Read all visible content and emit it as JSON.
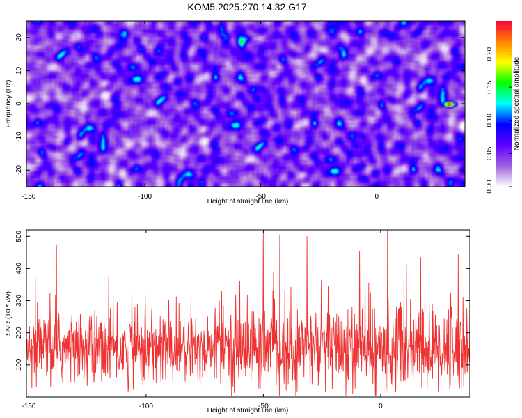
{
  "title": "KOM5.2025.270.14.32.G17",
  "chart_data": [
    {
      "type": "heatmap",
      "xlabel": "Height of straight line (km)",
      "ylabel": "Frequency (Hz)",
      "xlim": [
        -151,
        38
      ],
      "ylim": [
        -25,
        25
      ],
      "xticks": [
        -150,
        -100,
        -50,
        0
      ],
      "xticklabels": [
        "-150",
        "-100",
        "-50",
        "0"
      ],
      "yticks": [
        -20,
        -10,
        0,
        10,
        20
      ],
      "yticklabels": [
        "-20",
        "-10",
        "0",
        "10",
        "20"
      ],
      "colorbar": {
        "label": "Normalized spectral amplitude",
        "range": [
          0,
          0.25
        ],
        "ticks": [
          0,
          0.05,
          0.1,
          0.15,
          0.2
        ],
        "ticklabels": [
          "0.00",
          "0.05",
          "0.10",
          "0.15",
          "0.20"
        ],
        "colors": [
          "#ffffff",
          "#a060e0",
          "#6000ff",
          "#0000ff",
          "#00ffff",
          "#00ff00",
          "#ffff00",
          "#ff8000",
          "#ff0040"
        ]
      },
      "peak": {
        "x": 31,
        "y": 0,
        "value": 0.24
      }
    },
    {
      "type": "line",
      "xlabel": "Height of straight line (km)",
      "ylabel": "SNR (10 * v/v)",
      "xlim": [
        -151,
        38
      ],
      "ylim": [
        0,
        520
      ],
      "xticks": [
        -150,
        -100,
        -50,
        0
      ],
      "xticklabels": [
        "-150",
        "-100",
        "-50",
        "0"
      ],
      "yticks": [
        100,
        200,
        300,
        400,
        500
      ],
      "yticklabels": [
        "100",
        "200",
        "300",
        "400",
        "500"
      ],
      "color": "#ee3333",
      "noise": {
        "mean": 150,
        "std": 55,
        "min": 5
      },
      "spikes": [
        {
          "x": -138.2,
          "y": 475
        },
        {
          "x": -50,
          "y": 510
        },
        {
          "x": -43,
          "y": 505
        },
        {
          "x": -31.4,
          "y": 500
        },
        {
          "x": 3,
          "y": 520
        },
        {
          "x": 33,
          "y": 445
        },
        {
          "x": -116,
          "y": 375
        },
        {
          "x": -9,
          "y": 455
        },
        {
          "x": 17,
          "y": 435
        },
        {
          "x": -60,
          "y": 360
        },
        {
          "x": -106,
          "y": 342
        },
        {
          "x": 11,
          "y": 414
        }
      ]
    }
  ]
}
